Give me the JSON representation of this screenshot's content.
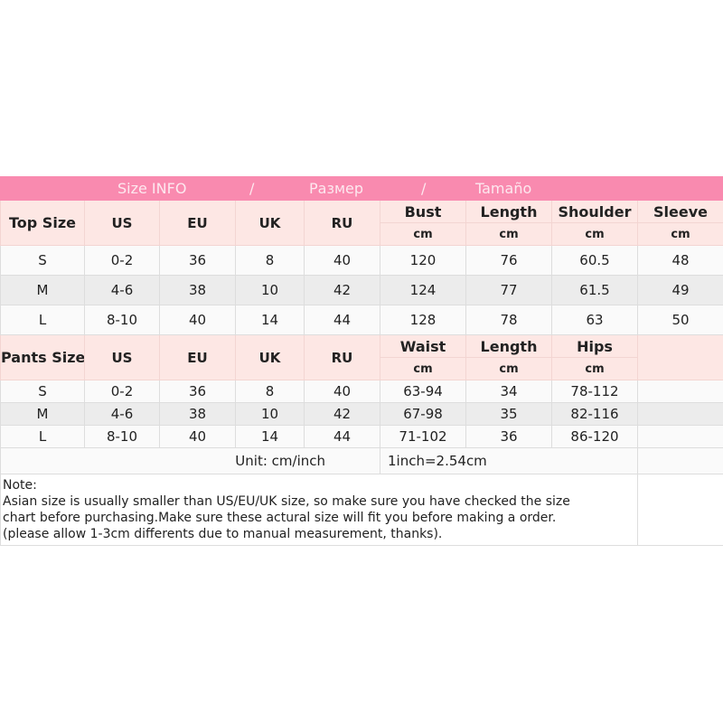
{
  "title": {
    "en": "Size INFO",
    "sep": "/",
    "ru": "Размер",
    "es": "Tamaño"
  },
  "top": {
    "label": "Top Size",
    "headers": [
      "US",
      "EU",
      "UK",
      "RU"
    ],
    "measures": [
      "Bust",
      "Length",
      "Shoulder",
      "Sleeve"
    ],
    "unit": "cm",
    "rows": [
      [
        "S",
        "0-2",
        "36",
        "8",
        "40",
        "120",
        "76",
        "60.5",
        "48"
      ],
      [
        "M",
        "4-6",
        "38",
        "10",
        "42",
        "124",
        "77",
        "61.5",
        "49"
      ],
      [
        "L",
        "8-10",
        "40",
        "14",
        "44",
        "128",
        "78",
        "63",
        "50"
      ]
    ]
  },
  "pants": {
    "label": "Pants Size",
    "headers": [
      "US",
      "EU",
      "UK",
      "RU"
    ],
    "measures": [
      "Waist",
      "Length",
      "Hips"
    ],
    "unit": "cm",
    "rows": [
      [
        "S",
        "0-2",
        "36",
        "8",
        "40",
        "63-94",
        "34",
        "78-112"
      ],
      [
        "M",
        "4-6",
        "38",
        "10",
        "42",
        "67-98",
        "35",
        "82-116"
      ],
      [
        "L",
        "8-10",
        "40",
        "14",
        "44",
        "71-102",
        "36",
        "86-120"
      ]
    ]
  },
  "unit_line": {
    "unit": "Unit: cm/inch",
    "conversion": "1inch=2.54cm"
  },
  "note": {
    "label": "Note:",
    "text": "Asian size is usually smaller than US/EU/UK size, so make sure you have checked the size chart before purchasing.Make sure these actural size will fit you before making a order.(please allow 1-3cm differents due to manual measurement, thanks)."
  },
  "colors": {
    "title_bg": "#f98aaf",
    "header_bg": "#fde7e4",
    "alt_row": "#ececec"
  }
}
